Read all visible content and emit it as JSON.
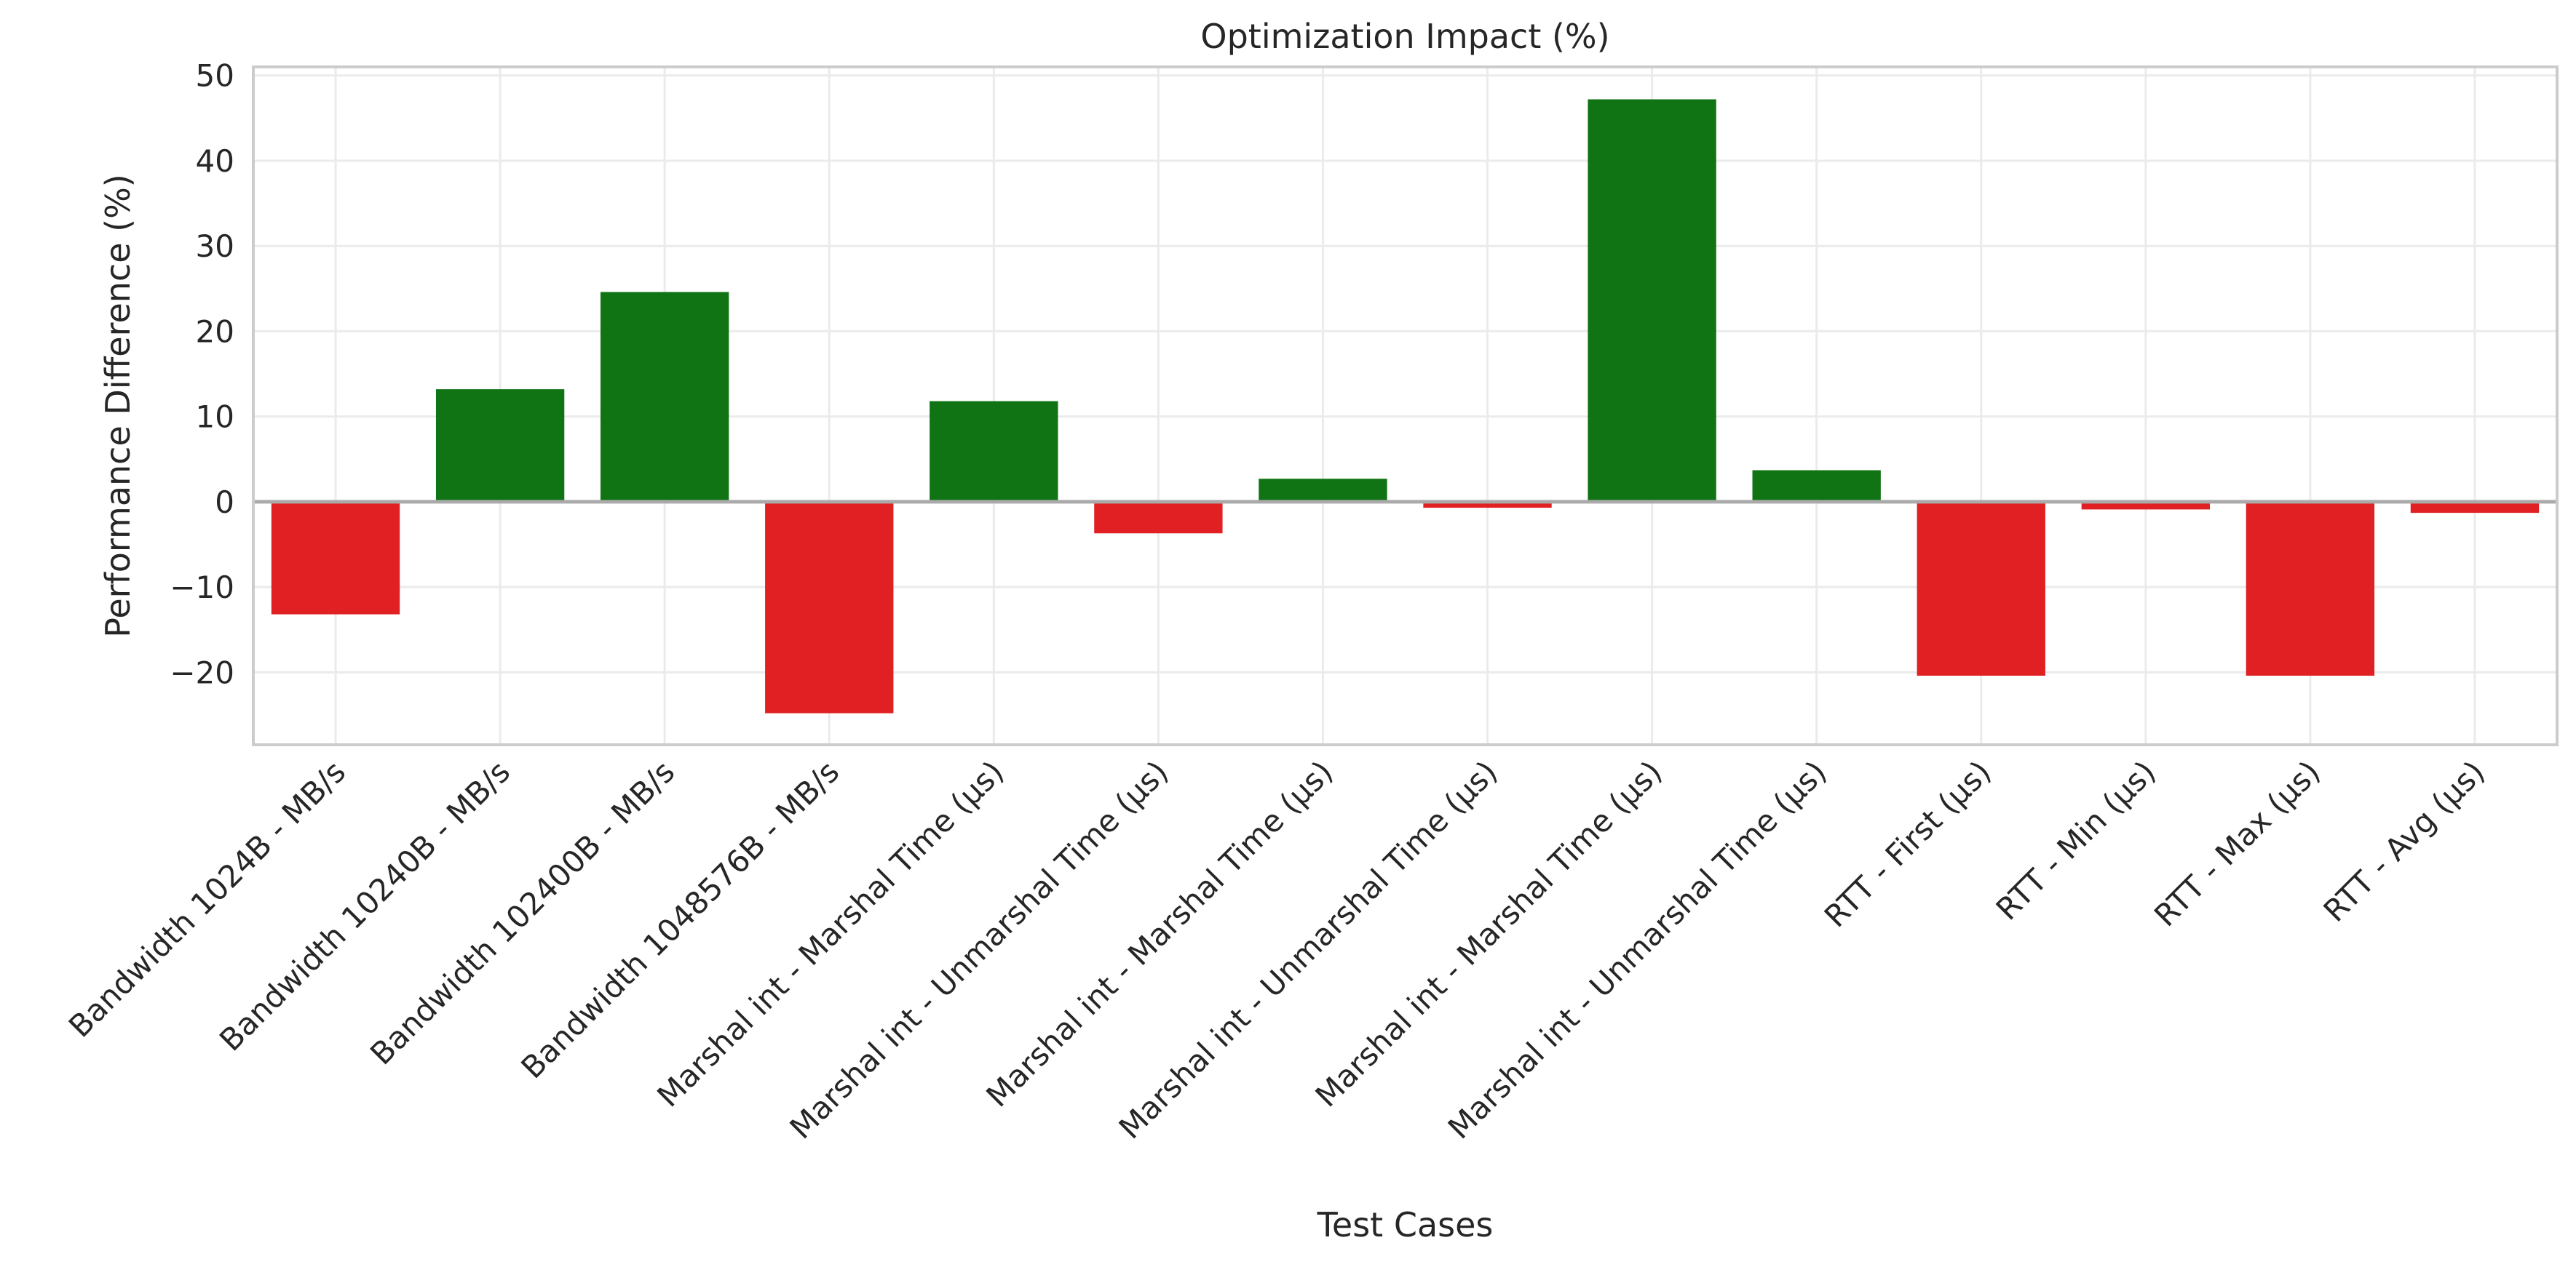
{
  "chart_data": {
    "type": "bar",
    "title": "Optimization Impact (%)",
    "xlabel": "Test Cases",
    "ylabel": "Performance Difference (%)",
    "ylim": [
      -28.5,
      51
    ],
    "yticks": [
      -20,
      -10,
      0,
      10,
      20,
      30,
      40,
      50
    ],
    "grid": true,
    "legend": "none",
    "positive_color": "#107314",
    "negative_color": "#e02022",
    "categories": [
      "Bandwidth 1024B - MB/s",
      "Bandwidth 10240B - MB/s",
      "Bandwidth 102400B - MB/s",
      "Bandwidth 1048576B - MB/s",
      "Marshal int - Marshal Time (µs)",
      "Marshal int - Unmarshal Time (µs)",
      "Marshal int - Marshal Time (µs)",
      "Marshal int - Unmarshal Time (µs)",
      "Marshal int - Marshal Time (µs)",
      "Marshal int - Unmarshal Time (µs)",
      "RTT - First (µs)",
      "RTT - Min (µs)",
      "RTT - Max (µs)",
      "RTT - Avg (µs)"
    ],
    "values": [
      -13.2,
      13.2,
      24.6,
      -24.8,
      11.8,
      -3.7,
      2.7,
      -0.7,
      47.2,
      3.7,
      -20.4,
      -0.9,
      -20.4,
      -1.3
    ]
  }
}
